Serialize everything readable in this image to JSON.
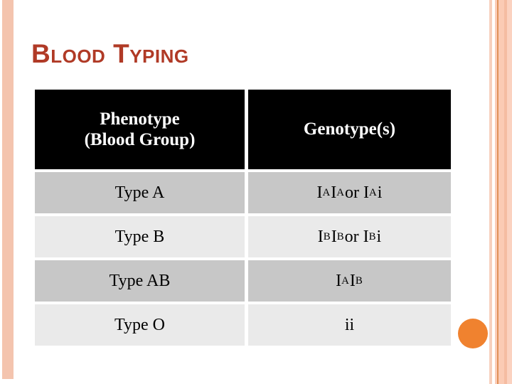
{
  "slide": {
    "title": "Blood Typing",
    "colors": {
      "title": "#B03A26",
      "circle": "#F0822F",
      "left_stripe": "#F4C4AE",
      "header_bg": "#000000",
      "header_text": "#FFFFFF",
      "row_dark": "#C7C7C7",
      "row_light": "#EAEAEA"
    }
  },
  "table": {
    "headers": [
      "Phenotype\n(Blood Group)",
      "Genotype(s)"
    ],
    "rows": [
      {
        "phenotype": "Type A",
        "genotype": "I{A}I{A} or I{A}i"
      },
      {
        "phenotype": "Type B",
        "genotype": "I{B}I{B} or I{B}i"
      },
      {
        "phenotype": "Type AB",
        "genotype": "I{A}I{B}"
      },
      {
        "phenotype": "Type O",
        "genotype": "ii"
      }
    ]
  }
}
